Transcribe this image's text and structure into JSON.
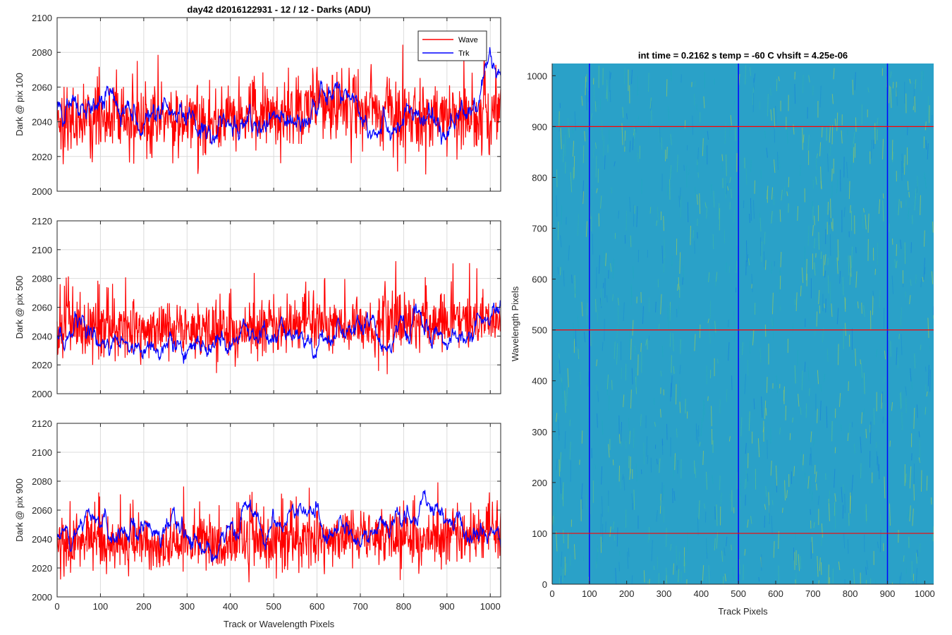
{
  "figure": {
    "title": "day42 d2016122931 - 12 / 12 - Darks (ADU)"
  },
  "chart_data": [
    {
      "type": "line",
      "title": "day42 d2016122931 - 12 / 12 - Darks (ADU)",
      "xlabel": "",
      "ylabel": "Dark @ pix 100",
      "xlim": [
        0,
        1024
      ],
      "ylim": [
        2000,
        2100
      ],
      "xticks": [
        0,
        100,
        200,
        300,
        400,
        500,
        600,
        700,
        800,
        900,
        1000
      ],
      "yticks": [
        2000,
        2020,
        2040,
        2060,
        2080,
        2100
      ],
      "grid": true,
      "legend": {
        "placement": "top-right",
        "entries": [
          "Wave",
          "Trk"
        ]
      },
      "series": [
        {
          "name": "Wave",
          "color": "#ff0000",
          "base": 2042,
          "noise": 10,
          "spike_rate": 0.04,
          "spike_amp": 22,
          "drift": [
            [
              0,
              0
            ],
            [
              150,
              -2
            ],
            [
              400,
              -2
            ],
            [
              650,
              8
            ],
            [
              800,
              0
            ],
            [
              1024,
              4
            ]
          ]
        },
        {
          "name": "Trk",
          "color": "#0000ff",
          "base": 2038,
          "noise": 5,
          "spike_rate": 0.0,
          "spike_amp": 0,
          "drift": [
            [
              0,
              8
            ],
            [
              60,
              0
            ],
            [
              130,
              20
            ],
            [
              170,
              8
            ],
            [
              250,
              0
            ],
            [
              500,
              0
            ],
            [
              560,
              10
            ],
            [
              680,
              18
            ],
            [
              720,
              4
            ],
            [
              900,
              0
            ],
            [
              960,
              10
            ],
            [
              1000,
              35
            ],
            [
              1024,
              20
            ]
          ]
        }
      ]
    },
    {
      "type": "line",
      "xlabel": "",
      "ylabel": "Dark @ pix 500",
      "xlim": [
        0,
        1024
      ],
      "ylim": [
        2000,
        2120
      ],
      "xticks": [
        0,
        100,
        200,
        300,
        400,
        500,
        600,
        700,
        800,
        900,
        1000
      ],
      "yticks": [
        2000,
        2020,
        2040,
        2060,
        2080,
        2100,
        2120
      ],
      "grid": true,
      "series": [
        {
          "name": "Wave",
          "color": "#ff0000",
          "base": 2044,
          "noise": 10,
          "spike_rate": 0.04,
          "spike_amp": 25,
          "drift": [
            [
              0,
              2
            ],
            [
              300,
              0
            ],
            [
              700,
              4
            ],
            [
              1024,
              4
            ]
          ]
        },
        {
          "name": "Trk",
          "color": "#0000ff",
          "base": 2034,
          "noise": 5,
          "spike_rate": 0.0,
          "spike_amp": 0,
          "drift": [
            [
              0,
              4
            ],
            [
              60,
              12
            ],
            [
              120,
              0
            ],
            [
              300,
              -2
            ],
            [
              420,
              6
            ],
            [
              600,
              4
            ],
            [
              680,
              16
            ],
            [
              760,
              2
            ],
            [
              830,
              16
            ],
            [
              900,
              0
            ],
            [
              1000,
              12
            ],
            [
              1024,
              24
            ]
          ]
        }
      ]
    },
    {
      "type": "line",
      "xlabel": "Track or Wavelength Pixels",
      "ylabel": "Dark @ pix 900",
      "xlim": [
        0,
        1024
      ],
      "ylim": [
        2000,
        2120
      ],
      "xticks": [
        0,
        100,
        200,
        300,
        400,
        500,
        600,
        700,
        800,
        900,
        1000
      ],
      "yticks": [
        2000,
        2020,
        2040,
        2060,
        2080,
        2100,
        2120
      ],
      "grid": true,
      "series": [
        {
          "name": "Wave",
          "color": "#ff0000",
          "base": 2038,
          "noise": 10,
          "spike_rate": 0.04,
          "spike_amp": 24,
          "drift": [
            [
              0,
              0
            ],
            [
              400,
              -2
            ],
            [
              700,
              4
            ],
            [
              1024,
              4
            ]
          ]
        },
        {
          "name": "Trk",
          "color": "#0000ff",
          "base": 2040,
          "noise": 5,
          "spike_rate": 0.0,
          "spike_amp": 0,
          "drift": [
            [
              0,
              4
            ],
            [
              240,
              12
            ],
            [
              320,
              -4
            ],
            [
              420,
              0
            ],
            [
              440,
              26
            ],
            [
              480,
              6
            ],
            [
              560,
              16
            ],
            [
              700,
              0
            ],
            [
              860,
              22
            ],
            [
              920,
              6
            ],
            [
              1024,
              0
            ]
          ]
        }
      ]
    },
    {
      "type": "heatmap",
      "title": "int time = 0.2162 s   temp = -60 C   vhsift = 4.25e-06",
      "xlabel": "Track Pixels",
      "ylabel": "Wavelength Pixels",
      "xlim": [
        0,
        1024
      ],
      "ylim": [
        0,
        1024
      ],
      "xticks": [
        0,
        100,
        200,
        300,
        400,
        500,
        600,
        700,
        800,
        900,
        1000
      ],
      "yticks": [
        0,
        100,
        200,
        300,
        400,
        500,
        600,
        700,
        800,
        900,
        1000
      ],
      "colormap": "parula",
      "vertical_markers": {
        "color": "#0000ff",
        "x": [
          100,
          500,
          900
        ]
      },
      "horizontal_markers": {
        "color": "#ff0000",
        "y": [
          100,
          500,
          900
        ]
      }
    }
  ]
}
